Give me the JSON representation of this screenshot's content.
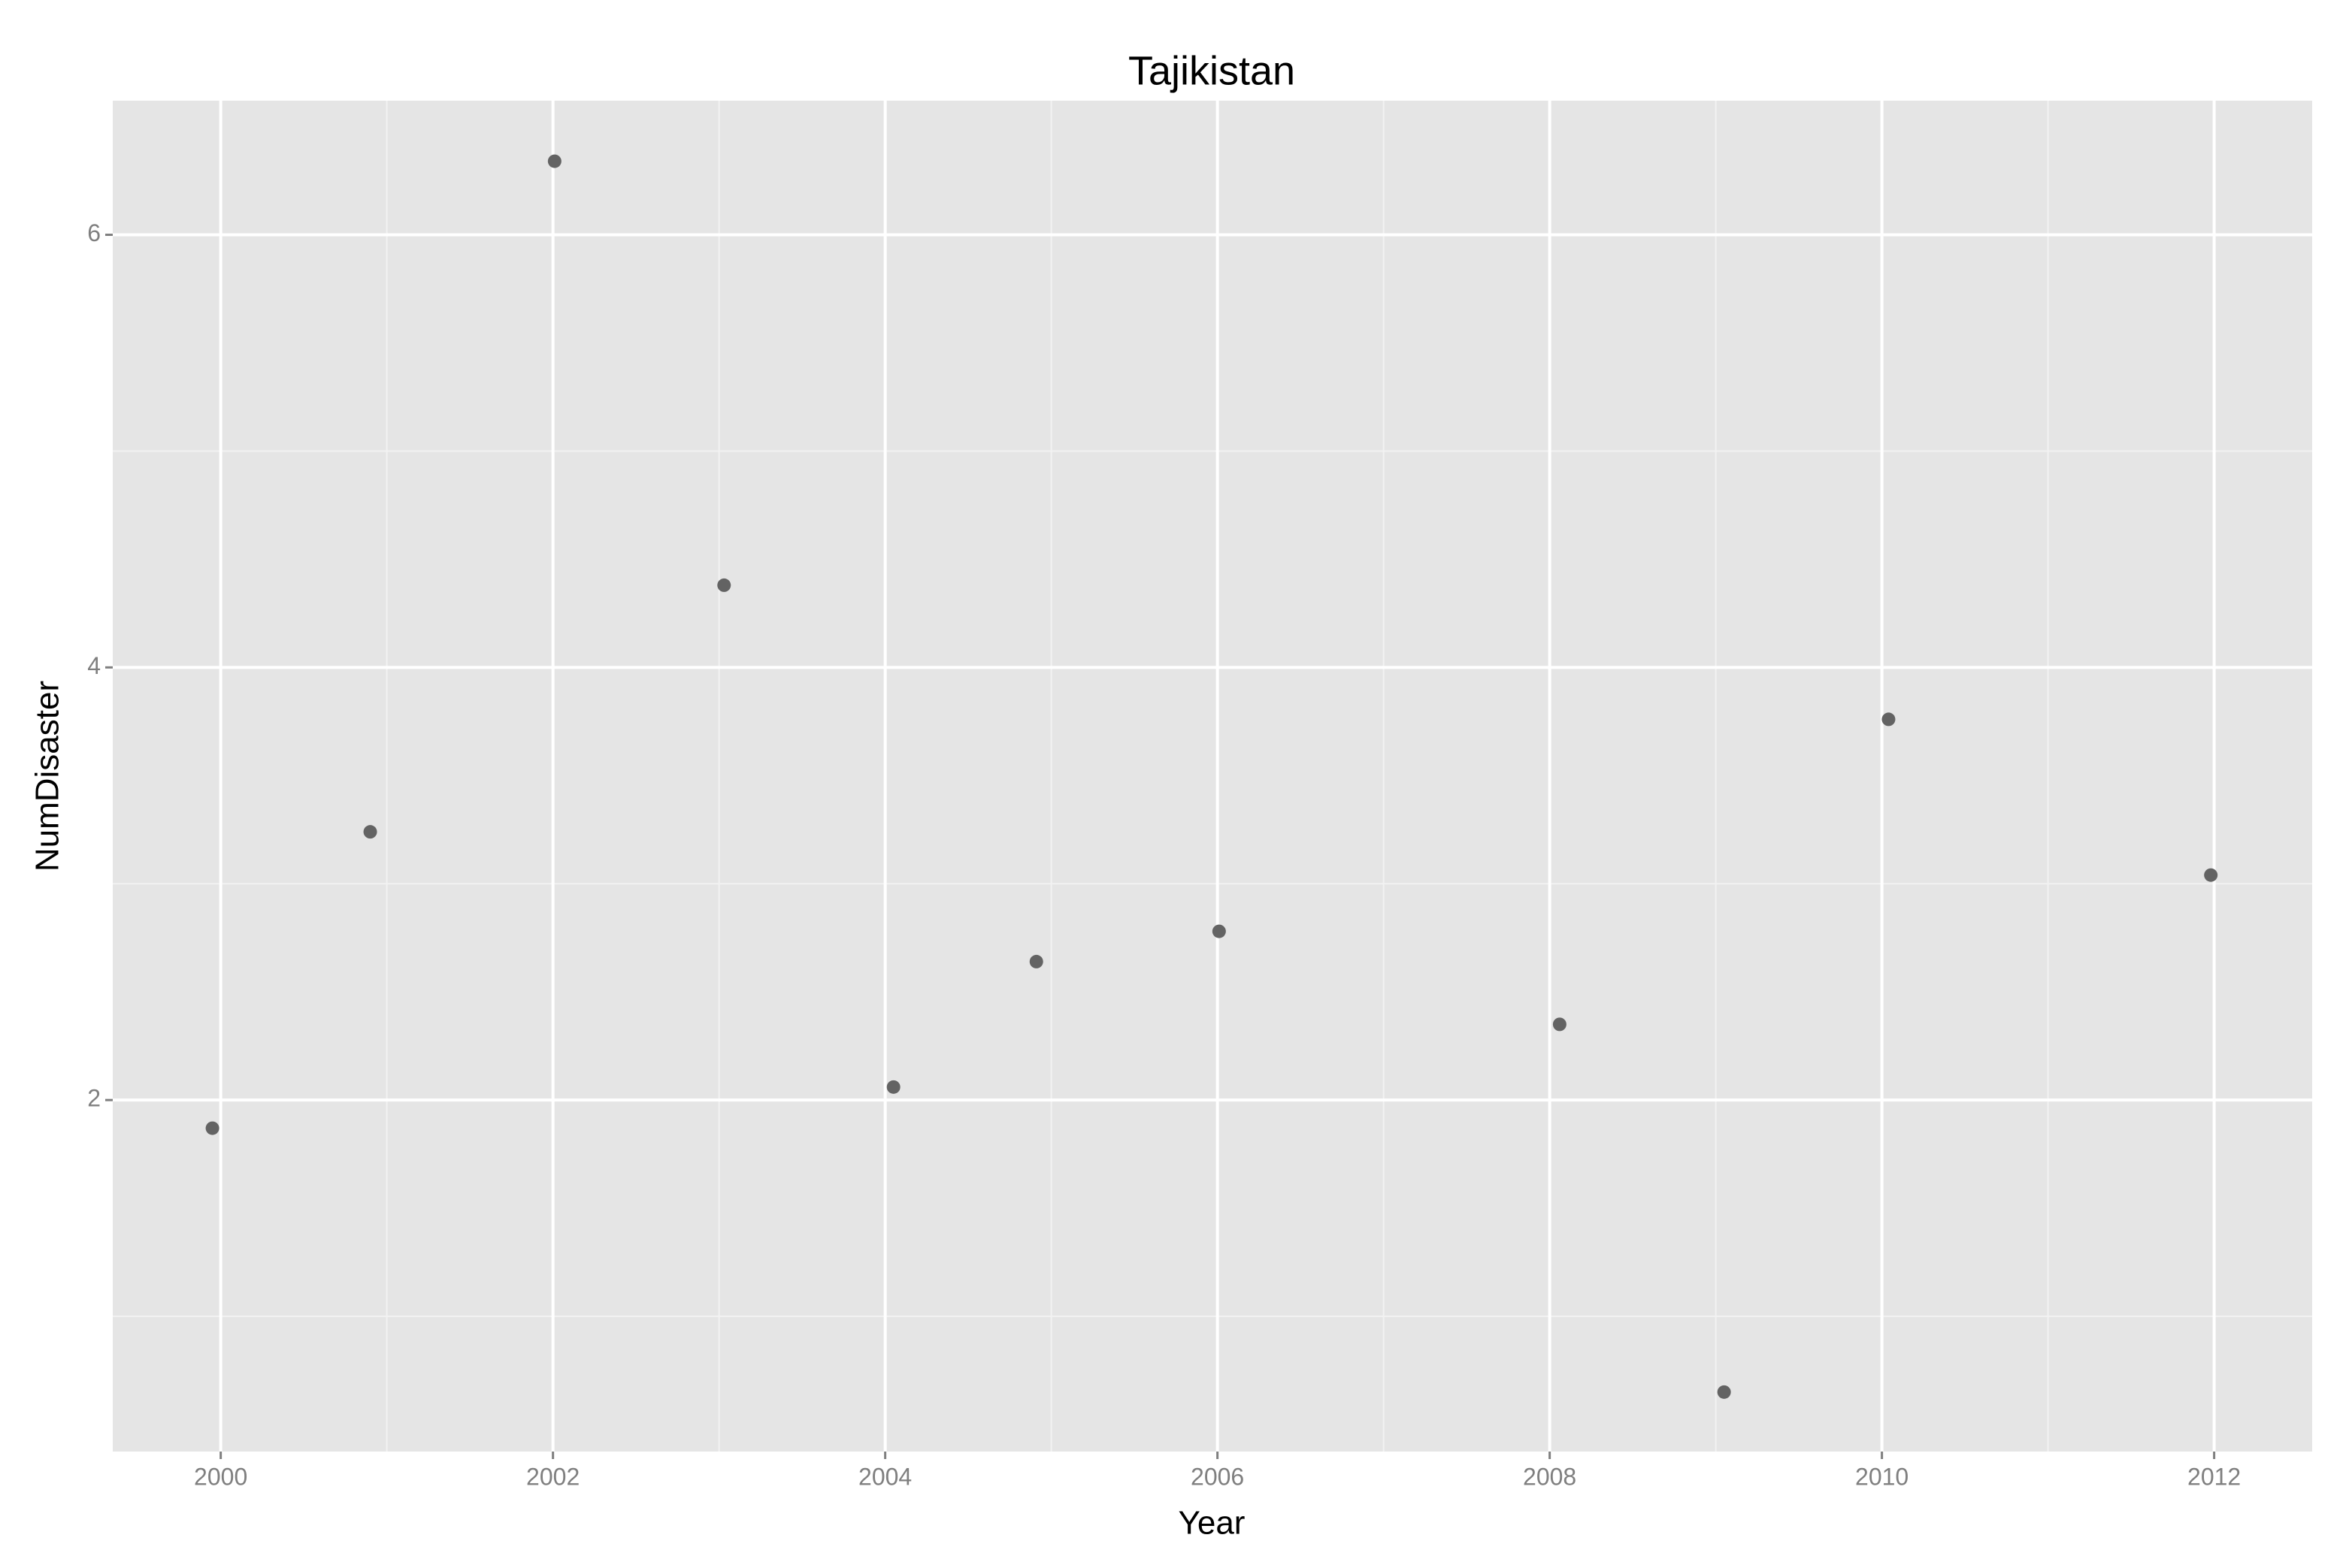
{
  "chart_data": {
    "type": "scatter",
    "title": "Tajikistan",
    "x_label": "Year",
    "y_label": "NumDisaster",
    "x": [
      1999.95,
      2000.9,
      2002.01,
      2003.03,
      2004.05,
      2004.91,
      2006.01,
      2008.06,
      2009.05,
      2010.04,
      2011.98
    ],
    "values": [
      1.87,
      3.24,
      6.34,
      4.38,
      2.06,
      2.64,
      2.78,
      2.35,
      0.65,
      3.76,
      3.04
    ],
    "color": "#636363",
    "xlim": [
      1999.35,
      2012.59
    ],
    "ylim": [
      0.375,
      6.62
    ],
    "xticks": [
      2000,
      2002,
      2004,
      2006,
      2008,
      2010,
      2012
    ],
    "yticks": [
      2,
      4,
      6
    ],
    "x_minor_ticks": [
      2001,
      2003,
      2005,
      2007,
      2009,
      2011
    ],
    "y_minor_ticks": [
      1,
      3,
      5
    ],
    "grid": true
  }
}
